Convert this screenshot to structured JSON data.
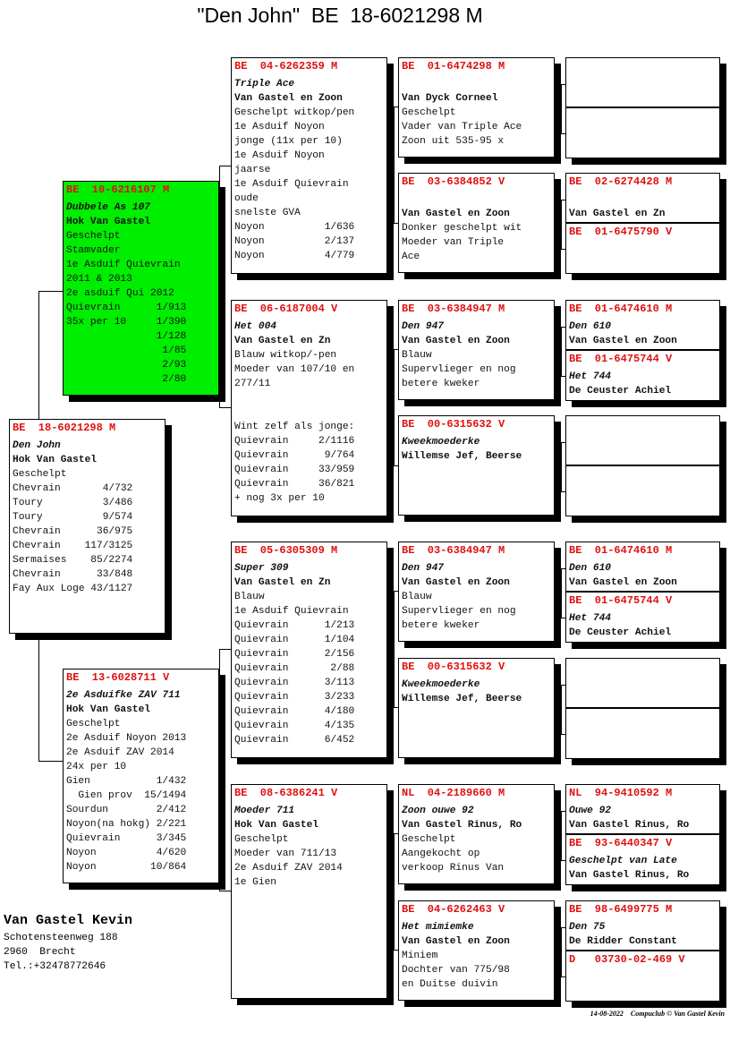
{
  "title": "\"Den John\"  BE  18-6021298 M",
  "colors": {
    "ring": "#e01010",
    "highlight": "#00ee00"
  },
  "pedigree": {
    "subject": {
      "ring": "BE  18-6021298 M",
      "lines": [
        "Den John",
        "Hok Van Gastel",
        "Geschelpt",
        "Chevrain       4/732",
        "Toury          3/486",
        "Toury          9/574",
        "Chevrain      36/975",
        "Chevrain    117/3125",
        "Sermaises    85/2274",
        "Chevrain      33/848",
        "Fay Aux Loge 43/1127"
      ]
    },
    "sire": {
      "ring": "BE  10-6216107 M",
      "highlighted": true,
      "lines": [
        "Dubbele As 107",
        "Hok Van Gastel",
        "Geschelpt",
        "Stamvader",
        "1e Asduif Quievrain",
        "2011 & 2013",
        "2e asduif Qui 2012",
        "Quievrain      1/913",
        "35x per 10     1/390",
        "               1/128",
        "                1/85",
        "                2/93",
        "                2/80"
      ]
    },
    "dam": {
      "ring": "BE  13-6028711 V",
      "lines": [
        "2e Asduifke ZAV 711",
        "Hok Van Gastel",
        "Geschelpt",
        "2e Asduif Noyon 2013",
        "2e Asduif ZAV 2014",
        "24x per 10",
        "Gien           1/432",
        "  Gien prov  15/1494",
        "Sourdun        2/412",
        "Noyon(na hokg) 2/221",
        "Quievrain      3/345",
        "Noyon          4/620",
        "Noyon         10/864"
      ]
    },
    "gen2": [
      {
        "ring": "BE  04-6262359 M",
        "lines": [
          "Triple Ace",
          "Van Gastel en Zoon",
          "Geschelpt witkop/pen",
          "1e Asduif Noyon",
          "jonge (11x per 10)",
          "1e Asduif Noyon",
          "jaarse",
          "1e Asduif Quievrain",
          "oude",
          "snelste GVA",
          "Noyon          1/636",
          "Noyon          2/137",
          "Noyon          4/779"
        ]
      },
      {
        "ring": "BE  06-6187004 V",
        "lines": [
          "Het 004",
          "Van Gastel en Zn",
          "Blauw witkop/-pen",
          "Moeder van 107/10 en",
          "277/11",
          "",
          "",
          "Wint zelf als jonge:",
          "Quievrain     2/1116",
          "Quievrain      9/764",
          "Quievrain     33/959",
          "Quievrain     36/821",
          "+ nog 3x per 10"
        ]
      },
      {
        "ring": "BE  05-6305309 M",
        "lines": [
          "Super 309",
          "Van Gastel en Zn",
          "Blauw",
          "1e Asduif Quievrain",
          "Quievrain      1/213",
          "Quievrain      1/104",
          "Quievrain      2/156",
          "Quievrain       2/88",
          "Quievrain      3/113",
          "Quievrain      3/233",
          "Quievrain      4/180",
          "Quievrain      4/135",
          "Quievrain      6/452"
        ]
      },
      {
        "ring": "BE  08-6386241 V",
        "lines": [
          "Moeder 711",
          "Hok Van Gastel",
          "Geschelpt",
          "Moeder van 711/13",
          "2e Asduif ZAV 2014",
          "1e Gien"
        ]
      }
    ],
    "gen3": [
      {
        "ring": "BE  01-6474298 M",
        "lines": [
          "",
          "Van Dyck Corneel",
          "Geschelpt",
          "Vader van Triple Ace",
          "Zoon uit 535-95 x"
        ]
      },
      {
        "ring": "BE  03-6384852 V",
        "lines": [
          "",
          "Van Gastel en Zoon",
          "Donker geschelpt wit",
          "Moeder van Triple",
          "Ace"
        ]
      },
      {
        "ring": "BE  03-6384947 M",
        "lines": [
          "Den 947",
          "Van Gastel en Zoon",
          "Blauw",
          "Supervlieger en nog",
          "betere kweker"
        ]
      },
      {
        "ring": "BE  00-6315632 V",
        "lines": [
          "Kweekmoederke",
          "Willemse Jef, Beerse"
        ]
      },
      {
        "ring": "BE  03-6384947 M",
        "lines": [
          "Den 947",
          "Van Gastel en Zoon",
          "Blauw",
          "Supervlieger en nog",
          "betere kweker"
        ]
      },
      {
        "ring": "BE  00-6315632 V",
        "lines": [
          "Kweekmoederke",
          "Willemse Jef, Beerse"
        ]
      },
      {
        "ring": "NL  04-2189660 M",
        "lines": [
          "Zoon ouwe 92",
          "Van Gastel Rinus, Ro",
          "Geschelpt",
          "Aangekocht op",
          "verkoop Rinus Van"
        ]
      },
      {
        "ring": "BE  04-6262463 V",
        "lines": [
          "Het mimiemke",
          "Van Gastel en Zoon",
          "Miniem",
          "Dochter van 775/98",
          "en Duitse duivin"
        ]
      }
    ],
    "gen4": [
      {
        "ring": "",
        "lines": []
      },
      {
        "ring": "",
        "lines": []
      },
      {
        "ring": "BE  02-6274428 M",
        "lines": [
          "",
          "Van Gastel en Zn"
        ]
      },
      {
        "ring": "BE  01-6475790 V",
        "lines": []
      },
      {
        "ring": "BE  01-6474610 M",
        "lines": [
          "Den 610",
          "Van Gastel en Zoon"
        ]
      },
      {
        "ring": "BE  01-6475744 V",
        "lines": [
          "Het 744",
          "De Ceuster Achiel"
        ]
      },
      {
        "ring": "",
        "lines": []
      },
      {
        "ring": "",
        "lines": []
      },
      {
        "ring": "BE  01-6474610 M",
        "lines": [
          "Den 610",
          "Van Gastel en Zoon"
        ]
      },
      {
        "ring": "BE  01-6475744 V",
        "lines": [
          "Het 744",
          "De Ceuster Achiel"
        ]
      },
      {
        "ring": "",
        "lines": []
      },
      {
        "ring": "",
        "lines": []
      },
      {
        "ring": "NL  94-9410592 M",
        "lines": [
          "Ouwe 92",
          "Van Gastel Rinus, Ro"
        ]
      },
      {
        "ring": "BE  93-6440347 V",
        "lines": [
          "Geschelpt van Late",
          "Van Gastel Rinus, Ro"
        ]
      },
      {
        "ring": "BE  98-6499775 M",
        "lines": [
          "Den 75",
          "De Ridder Constant"
        ]
      },
      {
        "ring": "D   03730-02-469 V",
        "lines": []
      }
    ]
  },
  "breeder": {
    "name": "Van Gastel Kevin",
    "address": "Schotensteenweg 188",
    "city": "2960  Brecht",
    "phone": "Tel.:+32478772646"
  },
  "footer": {
    "date": "14-08-2022",
    "credit": "Compuclub © Van Gastel Kevin"
  }
}
